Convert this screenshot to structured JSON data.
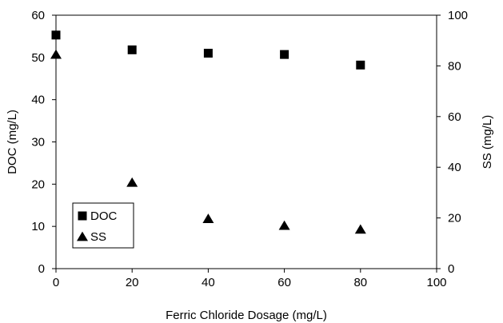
{
  "chart_data": {
    "type": "scatter",
    "xlabel": "Ferric Chloride Dosage (mg/L)",
    "ylabel_left": "DOC (mg/L)",
    "ylabel_right": "SS (mg/L)",
    "xlim": [
      0,
      100
    ],
    "ylim_left": [
      0,
      60
    ],
    "ylim_right": [
      0,
      100
    ],
    "x_ticks": [
      0,
      20,
      40,
      60,
      80,
      100
    ],
    "y_left_ticks": [
      0,
      10,
      20,
      30,
      40,
      50,
      60
    ],
    "y_right_ticks": [
      0,
      20,
      40,
      60,
      80,
      100
    ],
    "grid": false,
    "legend_placement": "bottom-left",
    "series": [
      {
        "name": "DOC",
        "axis": "left",
        "marker": "square",
        "color": "#000000",
        "x": [
          0,
          20,
          40,
          60,
          80
        ],
        "y": [
          55.3,
          51.8,
          51.0,
          50.7,
          48.2
        ]
      },
      {
        "name": "SS",
        "axis": "right",
        "marker": "triangle",
        "color": "#000000",
        "x": [
          0,
          20,
          40,
          60,
          80
        ],
        "y": [
          84.5,
          34.0,
          19.7,
          17.0,
          15.5
        ]
      }
    ]
  }
}
